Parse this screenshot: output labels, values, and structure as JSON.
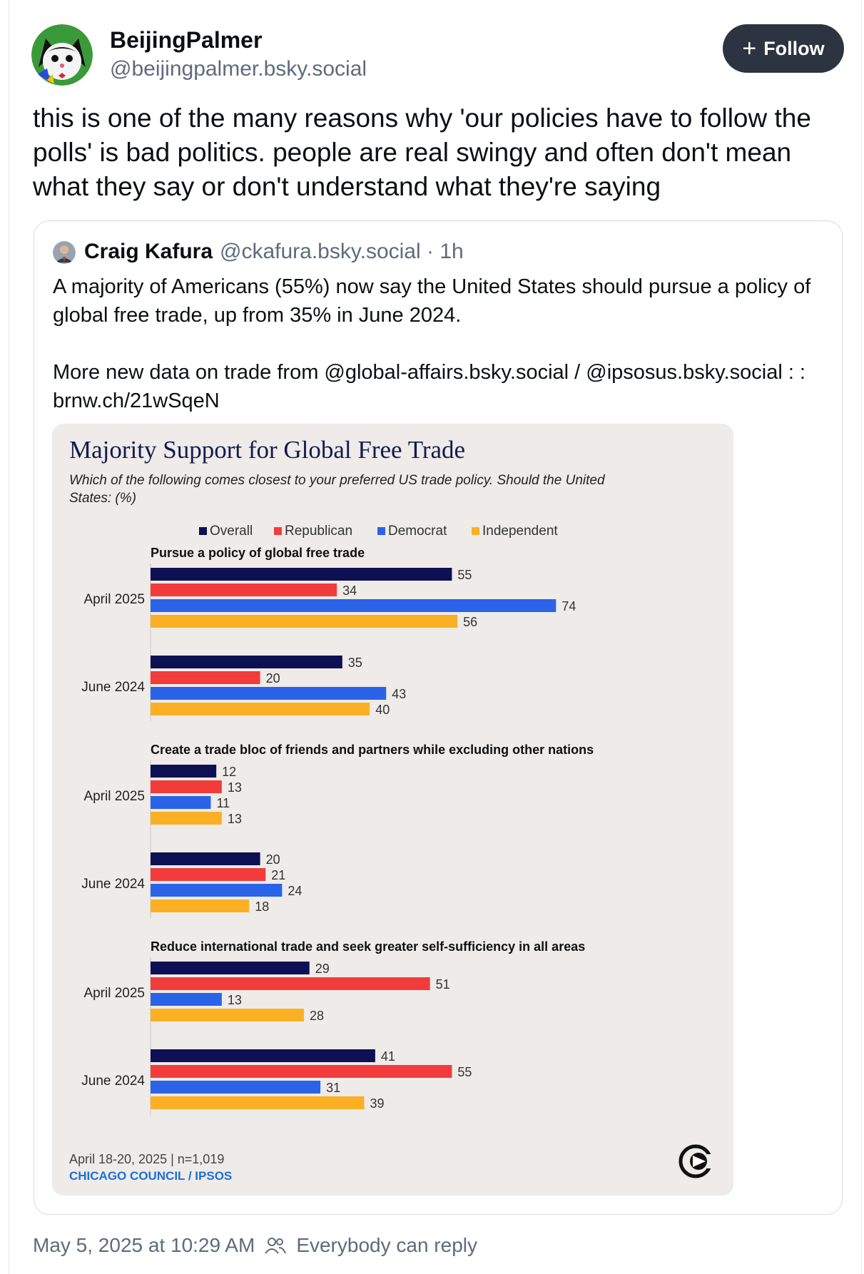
{
  "post": {
    "author_name": "BeijingPalmer",
    "author_handle": "@beijingpalmer.bsky.social",
    "follow_label": "Follow",
    "text": "this is one of the many reasons why 'our policies have to follow the polls' is bad politics. people are real swingy and often don't mean what they say or don't understand what they're saying",
    "timestamp": "May 5, 2025 at 10:29 AM",
    "reply_setting": "Everybody can reply"
  },
  "quote": {
    "author_name": "Craig Kafura",
    "meta": "@ckafura.bsky.social · 1h",
    "text_line1": "A majority of Americans (55%) now say the United States should pursue a policy of global free trade, up from 35% in June 2024.",
    "text_line2": "More new data on trade from @global-affairs.bsky.social / @ipsosus.bsky.social : : brnw.ch/21wSqeN"
  },
  "colors": {
    "overall": "#0d1052",
    "republican": "#f23c3c",
    "democrat": "#2b63e8",
    "independent": "#fbb024",
    "title": "#141a4e",
    "source": "#1d6fd8"
  },
  "chart_data": {
    "type": "bar",
    "orientation": "horizontal",
    "title": "Majority Support for Global Free Trade",
    "subtitle": "Which of the following comes closest to your preferred US trade policy. Should the United States: (%)",
    "legend": [
      "Overall",
      "Republican",
      "Democrat",
      "Independent"
    ],
    "legend_placement": "top",
    "groups": [
      {
        "label": "Pursue a policy of global free trade",
        "rows": [
          {
            "period": "April 2025",
            "values": [
              55,
              34,
              74,
              56
            ]
          },
          {
            "period": "June 2024",
            "values": [
              35,
              20,
              43,
              40
            ]
          }
        ]
      },
      {
        "label": "Create a trade bloc of friends and partners while excluding other nations",
        "rows": [
          {
            "period": "April 2025",
            "values": [
              12,
              13,
              11,
              13
            ]
          },
          {
            "period": "June 2024",
            "values": [
              20,
              21,
              24,
              18
            ]
          }
        ]
      },
      {
        "label": "Reduce international trade and seek greater self-sufficiency in all areas",
        "rows": [
          {
            "period": "April 2025",
            "values": [
              29,
              51,
              13,
              28
            ]
          },
          {
            "period": "June 2024",
            "values": [
              41,
              55,
              31,
              39
            ]
          }
        ]
      }
    ],
    "note": "April 18-20, 2025 | n=1,019",
    "source": "CHICAGO COUNCIL / IPSOS"
  }
}
